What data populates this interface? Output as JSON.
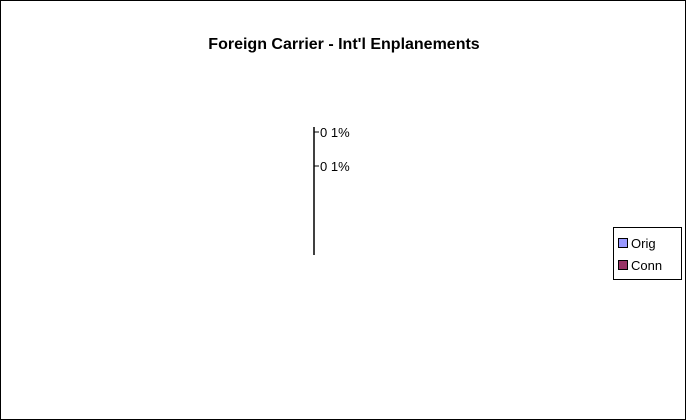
{
  "chart_data": {
    "type": "pie",
    "title": "Foreign Carrier - Int'l Enplanements",
    "categories": [
      "Orig",
      "Conn"
    ],
    "values": [
      0,
      0
    ],
    "data_labels": [
      "0 1%",
      "0 1%"
    ],
    "legend": {
      "placement": "right",
      "entries": [
        {
          "label": "Orig",
          "color": "#9999ff"
        },
        {
          "label": "Conn",
          "color": "#993366"
        }
      ]
    },
    "colors": {
      "Orig": "#9999ff",
      "Conn": "#993366"
    }
  }
}
